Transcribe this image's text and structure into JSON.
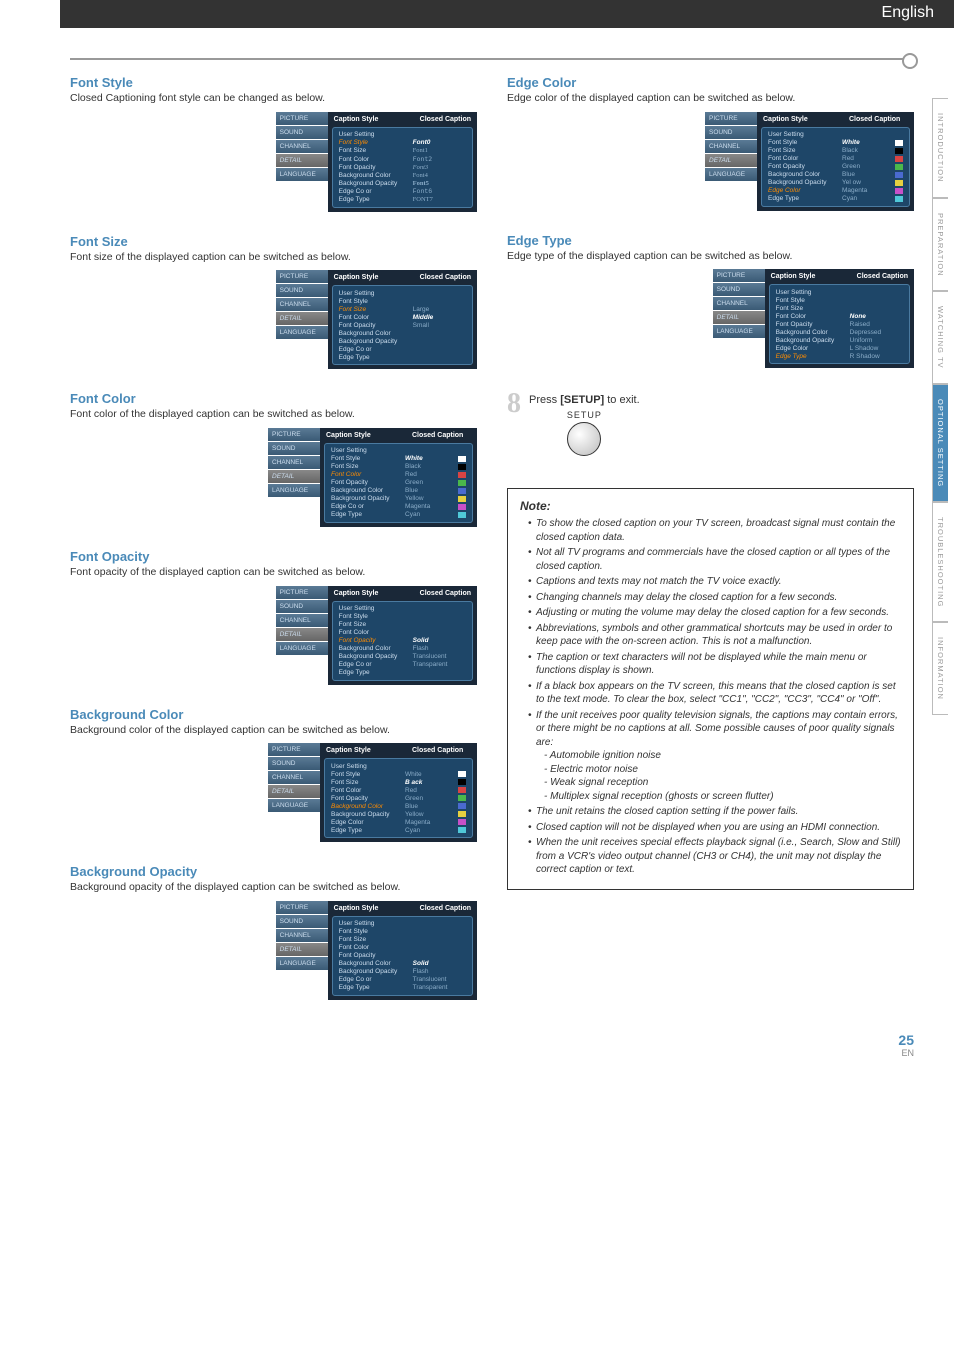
{
  "header": {
    "lang": "English"
  },
  "sideTabs": [
    "INTRODUCTION",
    "PREPARATION",
    "WATCHING  TV",
    "OPTIONAL  SETTING",
    "TROUBLESHOOTING",
    "INFORMATION"
  ],
  "activeTab": "OPTIONAL  SETTING",
  "pageNumber": "25",
  "pageSuffix": "EN",
  "menuHeader": {
    "title": "Caption Style",
    "right": "Closed Caption"
  },
  "menuSidebar": [
    "PICTURE",
    "SOUND",
    "CHANNEL",
    "DETAIL",
    "LANGUAGE"
  ],
  "sections": {
    "fontStyle": {
      "title": "Font Style",
      "desc": "Closed Captioning font style can be changed as below.",
      "active": "Font Style",
      "rows": [
        {
          "label": "User Setting",
          "value": ""
        },
        {
          "label": "Font Style",
          "value": "Font0",
          "sel": true
        },
        {
          "label": "Font Size",
          "value": "Font1",
          "ghost": true,
          "fontFam": "serif"
        },
        {
          "label": "Font Color",
          "value": "Font2",
          "ghost": true,
          "fontFam": "monospace"
        },
        {
          "label": "Font Opacity",
          "value": "Font3",
          "ghost": true,
          "fontFam": "cursive",
          "fontStyle": "italic"
        },
        {
          "label": "Background Color",
          "value": "Font4",
          "ghost": true,
          "fontFam": "Verdana"
        },
        {
          "label": "Background Opacity",
          "value": "Font5",
          "ghost": true,
          "fontFam": "Georgia",
          "fontWeight": "bold"
        },
        {
          "label": "Edge Co or",
          "value": "Font6",
          "ghost": true,
          "fontFam": "Courier"
        },
        {
          "label": "Edge Type",
          "value": "FONT7",
          "ghost": true,
          "fontFam": "Impact"
        }
      ]
    },
    "fontSize": {
      "title": "Font Size",
      "desc": "Font size of the displayed caption can be switched as below.",
      "active": "Font Size",
      "rows": [
        {
          "label": "User Setting",
          "value": ""
        },
        {
          "label": "Font Style",
          "value": ""
        },
        {
          "label": "Font Size",
          "value": "Large",
          "ghost": true
        },
        {
          "label": "Font Color",
          "value": "Middle",
          "sel": true
        },
        {
          "label": "Font Opacity",
          "value": "Small",
          "ghost": true
        },
        {
          "label": "Background Color",
          "value": ""
        },
        {
          "label": "Background Opacity",
          "value": ""
        },
        {
          "label": "Edge Co or",
          "value": ""
        },
        {
          "label": "Edge Type",
          "value": ""
        }
      ]
    },
    "fontColor": {
      "title": "Font Color",
      "desc": "Font color of the displayed caption can be switched as below.",
      "active": "Font Color",
      "rows": [
        {
          "label": "User Setting",
          "value": ""
        },
        {
          "label": "Font Style",
          "value": "White",
          "sel": true,
          "swatch": "#ffffff"
        },
        {
          "label": "Font Size",
          "value": "Black",
          "ghost": true,
          "swatch": "#000000"
        },
        {
          "label": "Font Color",
          "value": "Red",
          "ghost": true,
          "swatch": "#d84444"
        },
        {
          "label": "Font Opacity",
          "value": "Green",
          "ghost": true,
          "swatch": "#4bb84b"
        },
        {
          "label": "Background Color",
          "value": "Blue",
          "ghost": true,
          "swatch": "#4a6ad0"
        },
        {
          "label": "Background Opacity",
          "value": "Yellow",
          "ghost": true,
          "swatch": "#e6d040"
        },
        {
          "label": "Edge Co or",
          "value": "Magenta",
          "ghost": true,
          "swatch": "#c850c8"
        },
        {
          "label": "Edge Type",
          "value": "Cyan",
          "ghost": true,
          "swatch": "#50c8d8"
        }
      ]
    },
    "fontOpacity": {
      "title": "Font Opacity",
      "desc": "Font opacity of the displayed caption can be switched as below.",
      "active": "Font Opacity",
      "rows": [
        {
          "label": "User Setting",
          "value": ""
        },
        {
          "label": "Font Style",
          "value": ""
        },
        {
          "label": "Font Size",
          "value": ""
        },
        {
          "label": "Font Color",
          "value": ""
        },
        {
          "label": "Font Opacity",
          "value": "Solid",
          "sel": true
        },
        {
          "label": "Background Color",
          "value": "Flash",
          "ghost": true
        },
        {
          "label": "Background Opacity",
          "value": "Translucent",
          "ghost": true
        },
        {
          "label": "Edge Co or",
          "value": "Transparent",
          "ghost": true
        },
        {
          "label": "Edge Type",
          "value": ""
        }
      ]
    },
    "bgColor": {
      "title": "Background Color",
      "desc": "Background color of the displayed caption can be switched as below.",
      "active": "Background Color",
      "rows": [
        {
          "label": "User Setting",
          "value": ""
        },
        {
          "label": "Font Style",
          "value": "White",
          "ghost": true,
          "swatch": "#ffffff"
        },
        {
          "label": "Font Size",
          "value": "B ack",
          "sel": true,
          "swatch": "#000000"
        },
        {
          "label": "Font Color",
          "value": "Red",
          "ghost": true,
          "swatch": "#d84444"
        },
        {
          "label": "Font Opacity",
          "value": "Green",
          "ghost": true,
          "swatch": "#4bb84b"
        },
        {
          "label": "Background Color",
          "value": "Blue",
          "ghost": true,
          "swatch": "#4a6ad0"
        },
        {
          "label": "Background Opacity",
          "value": "Yellow",
          "ghost": true,
          "swatch": "#e6d040"
        },
        {
          "label": "Edge Color",
          "value": "Magenta",
          "ghost": true,
          "swatch": "#c850c8"
        },
        {
          "label": "Edge Type",
          "value": "Cyan",
          "ghost": true,
          "swatch": "#50c8d8"
        }
      ]
    },
    "bgOpacity": {
      "title": "Background Opacity",
      "desc": "Background opacity of the displayed caption can be switched as below.",
      "active": "Background Opacity",
      "rows": [
        {
          "label": "User Setting",
          "value": ""
        },
        {
          "label": "Font Style",
          "value": ""
        },
        {
          "label": "Font Size",
          "value": ""
        },
        {
          "label": "Font Color",
          "value": ""
        },
        {
          "label": "Font Opacity",
          "value": ""
        },
        {
          "label": "Background Color",
          "value": "Solid",
          "sel": true
        },
        {
          "label": "Background  Opacity",
          "value": "Flash",
          "ghost": true
        },
        {
          "label": "Edge Co or",
          "value": "Translucent",
          "ghost": true
        },
        {
          "label": "Edge Type",
          "value": "Transparent",
          "ghost": true
        }
      ]
    },
    "edgeColor": {
      "title": "Edge Color",
      "desc": "Edge color of the displayed caption can be switched as below.",
      "active": "Edge Color",
      "rows": [
        {
          "label": "User Setting",
          "value": ""
        },
        {
          "label": "Font Style",
          "value": "White",
          "sel": true,
          "swatch": "#ffffff"
        },
        {
          "label": "Font Size",
          "value": "Black",
          "ghost": true,
          "swatch": "#000000"
        },
        {
          "label": "Font Color",
          "value": "Red",
          "ghost": true,
          "swatch": "#d84444"
        },
        {
          "label": "Font Opacity",
          "value": "Green",
          "ghost": true,
          "swatch": "#4bb84b"
        },
        {
          "label": "Background  Color",
          "value": "Blue",
          "ghost": true,
          "swatch": "#4a6ad0"
        },
        {
          "label": "Background  Opacity",
          "value": "Yel ow",
          "ghost": true,
          "swatch": "#e6d040"
        },
        {
          "label": "Edge Color",
          "value": "Magenta",
          "ghost": true,
          "swatch": "#c850c8"
        },
        {
          "label": "Edge Type",
          "value": "Cyan",
          "ghost": true,
          "swatch": "#50c8d8"
        }
      ]
    },
    "edgeType": {
      "title": "Edge Type",
      "desc": "Edge type of the displayed caption can be switched as below.",
      "active": "Edge Type",
      "rows": [
        {
          "label": "User Setting",
          "value": ""
        },
        {
          "label": "Font Style",
          "value": ""
        },
        {
          "label": "Font Size",
          "value": ""
        },
        {
          "label": "Font Color",
          "value": "None",
          "sel": true
        },
        {
          "label": "Font Opacity",
          "value": "Raised",
          "ghost": true
        },
        {
          "label": "Background Color",
          "value": "Depressed",
          "ghost": true
        },
        {
          "label": "Background Opacity",
          "value": "Uniform",
          "ghost": true
        },
        {
          "label": "Edge Color",
          "value": "L Shadow",
          "ghost": true
        },
        {
          "label": "Edge Type",
          "value": "R Shadow",
          "ghost": true
        }
      ]
    }
  },
  "step8": {
    "num": "8",
    "text_pre": "Press ",
    "text_key": "[SETUP]",
    "text_post": " to exit.",
    "label": "SETUP"
  },
  "note": {
    "title": "Note:",
    "items": [
      "To show the closed caption on your TV screen, broadcast signal must contain the closed caption data.",
      "Not all TV programs and commercials have the closed caption or all types of the closed caption.",
      "Captions and texts may not match the TV voice exactly.",
      "Changing channels may delay the closed caption for a few seconds.",
      "Adjusting or muting the volume may delay the closed caption for a few seconds.",
      "Abbreviations, symbols and other grammatical shortcuts may be used in order to keep pace with the on-screen action. This is not a malfunction.",
      "The caption or text characters will not be displayed while the main menu or functions display is shown.",
      "If a black box appears on the TV screen, this means that the closed caption is set to the text mode. To clear the box, select \"CC1\", \"CC2\", \"CC3\", \"CC4\" or \"Off\".",
      "If the unit receives poor quality television signals, the captions may contain errors, or there might be no captions at all. Some possible causes of poor quality signals are:\n- Automobile ignition noise\n- Electric motor noise\n- Weak signal reception\n- Multiplex signal reception (ghosts or screen flutter)",
      "The unit retains the closed caption setting if the power fails.",
      "Closed caption will not be displayed when you are using an HDMI connection.",
      "When the unit receives special effects playback signal (i.e., Search, Slow and Still) from a VCR's video output channel (CH3 or CH4), the unit may not display the correct caption or text."
    ]
  }
}
